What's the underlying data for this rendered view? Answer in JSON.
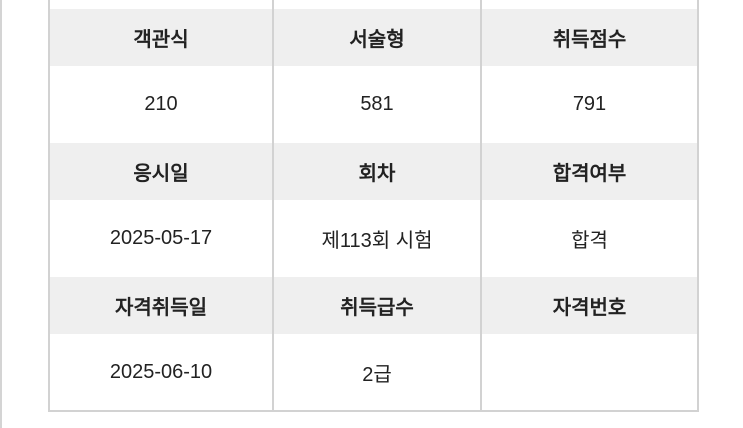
{
  "table": {
    "rows": [
      {
        "headers": [
          "객관식",
          "서술형",
          "취득점수"
        ],
        "values": [
          "210",
          "581",
          "791"
        ]
      },
      {
        "headers": [
          "응시일",
          "회차",
          "합격여부"
        ],
        "values": [
          "2025-05-17",
          "제113회 시험",
          "합격"
        ]
      },
      {
        "headers": [
          "자격취득일",
          "취득급수",
          "자격번호"
        ],
        "values": [
          "2025-06-10",
          "2급",
          ""
        ]
      }
    ]
  }
}
